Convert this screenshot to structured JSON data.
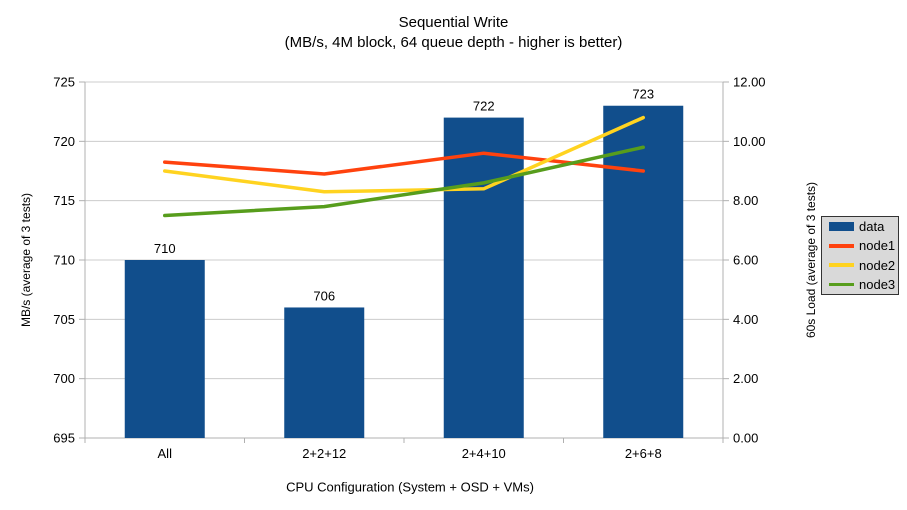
{
  "title": {
    "line1": "Sequential Write",
    "line2": "(MB/s, 4M block, 64 queue depth - higher is better)"
  },
  "chart_data": {
    "type": "combo-bar-line",
    "categories": [
      "All",
      "2+2+12",
      "2+4+10",
      "2+6+8"
    ],
    "bar_series": {
      "name": "data",
      "axis": "left",
      "values": [
        710,
        706,
        722,
        723
      ],
      "data_labels": [
        "710",
        "706",
        "722",
        "723"
      ],
      "color": "#114e8c"
    },
    "line_series": [
      {
        "name": "node1",
        "axis": "right",
        "values": [
          9.3,
          8.9,
          9.6,
          9.0
        ],
        "color": "#ff420e"
      },
      {
        "name": "node2",
        "axis": "right",
        "values": [
          9.0,
          8.3,
          8.4,
          10.8
        ],
        "color": "#ffd320"
      },
      {
        "name": "node3",
        "axis": "right",
        "values": [
          7.5,
          7.8,
          8.6,
          9.8
        ],
        "color": "#579d1c"
      }
    ],
    "axes": {
      "left": {
        "label": "MB/s (average of 3 tests)",
        "min": 695,
        "max": 725,
        "step": 5,
        "format": "int"
      },
      "right": {
        "label": "60s Load (average of 3 tests)",
        "min": 0,
        "max": 12,
        "step": 2,
        "format": "2dp"
      },
      "x": {
        "label": "CPU Configuration (System + OSD + VMs)"
      }
    },
    "grid": "horizontal",
    "legend": {
      "position": "right",
      "items": [
        {
          "label": "data",
          "color": "#114e8c",
          "marker": "rect"
        },
        {
          "label": "node1",
          "color": "#ff420e",
          "marker": "line"
        },
        {
          "label": "node2",
          "color": "#ffd320",
          "marker": "line"
        },
        {
          "label": "node3",
          "color": "#579d1c",
          "marker": "line"
        }
      ]
    }
  },
  "colors": {
    "grid": "#cccccc",
    "axis": "#b0b0b0",
    "text": "#000000",
    "legend_bg": "#d9d9d9",
    "legend_border": "#333333",
    "background": "#ffffff"
  }
}
